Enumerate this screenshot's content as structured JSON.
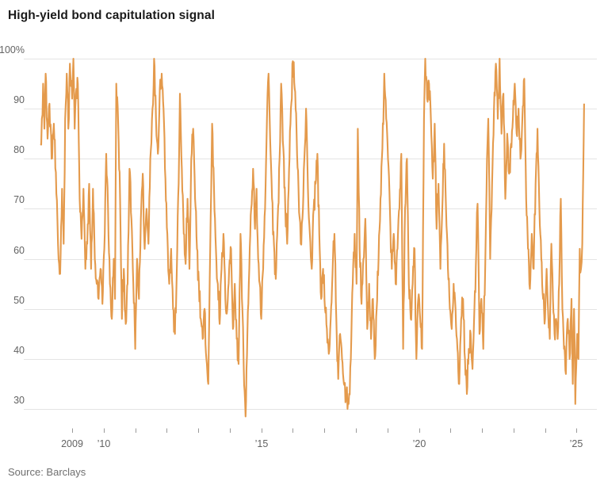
{
  "title": "High-yield bond capitulation signal",
  "source": "Source: Barclays",
  "chart_data": {
    "type": "line",
    "title": "High-yield bond capitulation signal",
    "series_name": "High-yield bond capitulation signal",
    "unit": "%",
    "line_color": "#e49a4c",
    "grid_color": "#e4e4e4",
    "tick_color": "#9a9a9a",
    "axis_text_color": "#636363",
    "legend": "none",
    "grid": "horizontal-only",
    "ylim": [
      27,
      101
    ],
    "y_ticks": [
      100,
      90,
      80,
      70,
      60,
      50,
      40,
      30
    ],
    "y_top_label": "100%",
    "x_ticks": [
      2009,
      2010,
      2011,
      2012,
      2013,
      2014,
      2015,
      2016,
      2017,
      2018,
      2019,
      2020,
      2021,
      2022,
      2023,
      2024,
      2025
    ],
    "x_tick_labels": {
      "2009": "2009",
      "2010": "’10",
      "2015": "’15",
      "2020": "’20",
      "2025": "’25"
    },
    "x_range": [
      2008.0,
      2025.3
    ],
    "noise": {
      "seed": 12345,
      "amplitude": 2.8,
      "points_per_year": 60,
      "clamp": [
        28.3,
        100.2
      ]
    },
    "points": [
      [
        2008.0,
        83
      ],
      [
        2008.04,
        88
      ],
      [
        2008.08,
        95
      ],
      [
        2008.12,
        86
      ],
      [
        2008.16,
        97
      ],
      [
        2008.22,
        84
      ],
      [
        2008.28,
        91
      ],
      [
        2008.35,
        80
      ],
      [
        2008.42,
        87
      ],
      [
        2008.5,
        73
      ],
      [
        2008.57,
        60
      ],
      [
        2008.62,
        57
      ],
      [
        2008.68,
        74
      ],
      [
        2008.73,
        63
      ],
      [
        2008.78,
        88
      ],
      [
        2008.83,
        97
      ],
      [
        2008.88,
        86
      ],
      [
        2008.93,
        99
      ],
      [
        2009.0,
        92
      ],
      [
        2009.04,
        100
      ],
      [
        2009.08,
        86
      ],
      [
        2009.12,
        93
      ],
      [
        2009.18,
        95
      ],
      [
        2009.24,
        72
      ],
      [
        2009.3,
        64
      ],
      [
        2009.36,
        74
      ],
      [
        2009.42,
        58
      ],
      [
        2009.48,
        63
      ],
      [
        2009.54,
        75
      ],
      [
        2009.6,
        58
      ],
      [
        2009.66,
        74
      ],
      [
        2009.72,
        60
      ],
      [
        2009.78,
        55
      ],
      [
        2009.84,
        52
      ],
      [
        2009.9,
        58
      ],
      [
        2009.96,
        51
      ],
      [
        2010.02,
        62
      ],
      [
        2010.08,
        81
      ],
      [
        2010.14,
        70
      ],
      [
        2010.2,
        55
      ],
      [
        2010.26,
        48
      ],
      [
        2010.32,
        60
      ],
      [
        2010.36,
        52
      ],
      [
        2010.4,
        95
      ],
      [
        2010.46,
        87
      ],
      [
        2010.52,
        72
      ],
      [
        2010.58,
        48
      ],
      [
        2010.64,
        58
      ],
      [
        2010.7,
        47
      ],
      [
        2010.76,
        55
      ],
      [
        2010.82,
        78
      ],
      [
        2010.88,
        68
      ],
      [
        2010.94,
        55
      ],
      [
        2011.0,
        42
      ],
      [
        2011.06,
        60
      ],
      [
        2011.12,
        52
      ],
      [
        2011.18,
        68
      ],
      [
        2011.24,
        77
      ],
      [
        2011.3,
        62
      ],
      [
        2011.36,
        70
      ],
      [
        2011.42,
        63
      ],
      [
        2011.48,
        80
      ],
      [
        2011.55,
        90
      ],
      [
        2011.6,
        100
      ],
      [
        2011.66,
        88
      ],
      [
        2011.72,
        81
      ],
      [
        2011.78,
        94
      ],
      [
        2011.84,
        97
      ],
      [
        2011.9,
        90
      ],
      [
        2011.96,
        76
      ],
      [
        2012.02,
        65
      ],
      [
        2012.08,
        55
      ],
      [
        2012.14,
        62
      ],
      [
        2012.2,
        50
      ],
      [
        2012.26,
        45
      ],
      [
        2012.32,
        58
      ],
      [
        2012.38,
        75
      ],
      [
        2012.42,
        93
      ],
      [
        2012.48,
        78
      ],
      [
        2012.54,
        65
      ],
      [
        2012.6,
        59
      ],
      [
        2012.66,
        72
      ],
      [
        2012.72,
        58
      ],
      [
        2012.78,
        80
      ],
      [
        2012.84,
        86
      ],
      [
        2012.9,
        72
      ],
      [
        2012.96,
        62
      ],
      [
        2013.02,
        55
      ],
      [
        2013.08,
        48
      ],
      [
        2013.14,
        44
      ],
      [
        2013.2,
        50
      ],
      [
        2013.26,
        40
      ],
      [
        2013.32,
        35
      ],
      [
        2013.38,
        62
      ],
      [
        2013.44,
        87
      ],
      [
        2013.5,
        74
      ],
      [
        2013.56,
        62
      ],
      [
        2013.62,
        55
      ],
      [
        2013.68,
        47
      ],
      [
        2013.74,
        58
      ],
      [
        2013.8,
        65
      ],
      [
        2013.86,
        52
      ],
      [
        2013.92,
        50
      ],
      [
        2013.98,
        58
      ],
      [
        2014.04,
        62
      ],
      [
        2014.1,
        46
      ],
      [
        2014.16,
        55
      ],
      [
        2014.22,
        44
      ],
      [
        2014.28,
        39
      ],
      [
        2014.34,
        65
      ],
      [
        2014.4,
        50
      ],
      [
        2014.44,
        39
      ],
      [
        2014.5,
        28.5
      ],
      [
        2014.56,
        45
      ],
      [
        2014.62,
        58
      ],
      [
        2014.68,
        70
      ],
      [
        2014.74,
        78
      ],
      [
        2014.8,
        66
      ],
      [
        2014.85,
        74
      ],
      [
        2014.9,
        60
      ],
      [
        2014.95,
        55
      ],
      [
        2015.0,
        48
      ],
      [
        2015.06,
        58
      ],
      [
        2015.12,
        70
      ],
      [
        2015.18,
        88
      ],
      [
        2015.23,
        97
      ],
      [
        2015.28,
        84
      ],
      [
        2015.34,
        72
      ],
      [
        2015.4,
        63
      ],
      [
        2015.46,
        56
      ],
      [
        2015.52,
        68
      ],
      [
        2015.58,
        80
      ],
      [
        2015.63,
        95
      ],
      [
        2015.7,
        82
      ],
      [
        2015.76,
        70
      ],
      [
        2015.82,
        63
      ],
      [
        2015.88,
        78
      ],
      [
        2015.94,
        90
      ],
      [
        2016.0,
        99.5
      ],
      [
        2016.06,
        94
      ],
      [
        2016.12,
        85
      ],
      [
        2016.18,
        74
      ],
      [
        2016.25,
        63
      ],
      [
        2016.32,
        70
      ],
      [
        2016.38,
        82
      ],
      [
        2016.42,
        90
      ],
      [
        2016.48,
        74
      ],
      [
        2016.54,
        65
      ],
      [
        2016.6,
        58
      ],
      [
        2016.66,
        70
      ],
      [
        2016.72,
        75
      ],
      [
        2016.78,
        81
      ],
      [
        2016.84,
        65
      ],
      [
        2016.9,
        52
      ],
      [
        2016.96,
        58
      ],
      [
        2017.02,
        50
      ],
      [
        2017.08,
        46
      ],
      [
        2017.14,
        41
      ],
      [
        2017.2,
        48
      ],
      [
        2017.26,
        57
      ],
      [
        2017.32,
        65
      ],
      [
        2017.38,
        48
      ],
      [
        2017.44,
        36
      ],
      [
        2017.5,
        45
      ],
      [
        2017.56,
        40
      ],
      [
        2017.62,
        35
      ],
      [
        2017.7,
        33
      ],
      [
        2017.77,
        31
      ],
      [
        2017.84,
        40
      ],
      [
        2017.9,
        55
      ],
      [
        2017.96,
        65
      ],
      [
        2018.02,
        55
      ],
      [
        2018.06,
        86
      ],
      [
        2018.12,
        62
      ],
      [
        2018.18,
        51
      ],
      [
        2018.24,
        60
      ],
      [
        2018.3,
        68
      ],
      [
        2018.36,
        46
      ],
      [
        2018.42,
        55
      ],
      [
        2018.48,
        44
      ],
      [
        2018.54,
        52
      ],
      [
        2018.6,
        40
      ],
      [
        2018.66,
        50
      ],
      [
        2018.72,
        60
      ],
      [
        2018.78,
        72
      ],
      [
        2018.84,
        82
      ],
      [
        2018.9,
        97
      ],
      [
        2018.96,
        88
      ],
      [
        2019.02,
        80
      ],
      [
        2019.08,
        70
      ],
      [
        2019.14,
        58
      ],
      [
        2019.2,
        65
      ],
      [
        2019.26,
        55
      ],
      [
        2019.32,
        62
      ],
      [
        2019.38,
        70
      ],
      [
        2019.44,
        81
      ],
      [
        2019.5,
        42
      ],
      [
        2019.56,
        70
      ],
      [
        2019.62,
        80
      ],
      [
        2019.68,
        55
      ],
      [
        2019.74,
        48
      ],
      [
        2019.8,
        55
      ],
      [
        2019.86,
        62
      ],
      [
        2019.92,
        40
      ],
      [
        2019.98,
        52
      ],
      [
        2020.04,
        48
      ],
      [
        2020.1,
        42
      ],
      [
        2020.16,
        88
      ],
      [
        2020.2,
        100
      ],
      [
        2020.26,
        92
      ],
      [
        2020.32,
        95
      ],
      [
        2020.38,
        88
      ],
      [
        2020.44,
        76
      ],
      [
        2020.5,
        87
      ],
      [
        2020.56,
        66
      ],
      [
        2020.62,
        75
      ],
      [
        2020.68,
        58
      ],
      [
        2020.74,
        70
      ],
      [
        2020.8,
        83
      ],
      [
        2020.86,
        70
      ],
      [
        2020.92,
        58
      ],
      [
        2020.98,
        50
      ],
      [
        2021.04,
        46
      ],
      [
        2021.1,
        55
      ],
      [
        2021.16,
        50
      ],
      [
        2021.22,
        42
      ],
      [
        2021.28,
        35
      ],
      [
        2021.34,
        48
      ],
      [
        2021.4,
        52
      ],
      [
        2021.46,
        40
      ],
      [
        2021.52,
        33
      ],
      [
        2021.58,
        42
      ],
      [
        2021.64,
        45
      ],
      [
        2021.7,
        38
      ],
      [
        2021.76,
        50
      ],
      [
        2021.82,
        62
      ],
      [
        2021.86,
        71
      ],
      [
        2021.92,
        45
      ],
      [
        2021.98,
        52
      ],
      [
        2022.04,
        42
      ],
      [
        2022.1,
        58
      ],
      [
        2022.16,
        80
      ],
      [
        2022.2,
        88
      ],
      [
        2022.26,
        60
      ],
      [
        2022.32,
        75
      ],
      [
        2022.38,
        90
      ],
      [
        2022.44,
        99
      ],
      [
        2022.5,
        88
      ],
      [
        2022.56,
        100
      ],
      [
        2022.62,
        85
      ],
      [
        2022.68,
        93
      ],
      [
        2022.74,
        72
      ],
      [
        2022.8,
        85
      ],
      [
        2022.86,
        77
      ],
      [
        2022.92,
        83
      ],
      [
        2022.98,
        88
      ],
      [
        2023.04,
        95
      ],
      [
        2023.1,
        85
      ],
      [
        2023.16,
        90
      ],
      [
        2023.22,
        80
      ],
      [
        2023.28,
        88
      ],
      [
        2023.34,
        96
      ],
      [
        2023.4,
        72
      ],
      [
        2023.46,
        62
      ],
      [
        2023.52,
        54
      ],
      [
        2023.58,
        65
      ],
      [
        2023.64,
        58
      ],
      [
        2023.7,
        75
      ],
      [
        2023.76,
        86
      ],
      [
        2023.82,
        70
      ],
      [
        2023.88,
        60
      ],
      [
        2023.94,
        52
      ],
      [
        2024.0,
        48
      ],
      [
        2024.05,
        58
      ],
      [
        2024.1,
        49
      ],
      [
        2024.15,
        44
      ],
      [
        2024.2,
        63
      ],
      [
        2024.25,
        52
      ],
      [
        2024.3,
        45
      ],
      [
        2024.35,
        48
      ],
      [
        2024.4,
        44
      ],
      [
        2024.45,
        55
      ],
      [
        2024.5,
        72
      ],
      [
        2024.55,
        50
      ],
      [
        2024.6,
        42
      ],
      [
        2024.66,
        37
      ],
      [
        2024.72,
        48
      ],
      [
        2024.78,
        40
      ],
      [
        2024.84,
        52
      ],
      [
        2024.88,
        35
      ],
      [
        2024.92,
        50
      ],
      [
        2024.96,
        31
      ],
      [
        2025.02,
        45
      ],
      [
        2025.06,
        40
      ],
      [
        2025.1,
        62
      ],
      [
        2025.14,
        58
      ],
      [
        2025.18,
        63
      ],
      [
        2025.24,
        91
      ]
    ]
  }
}
